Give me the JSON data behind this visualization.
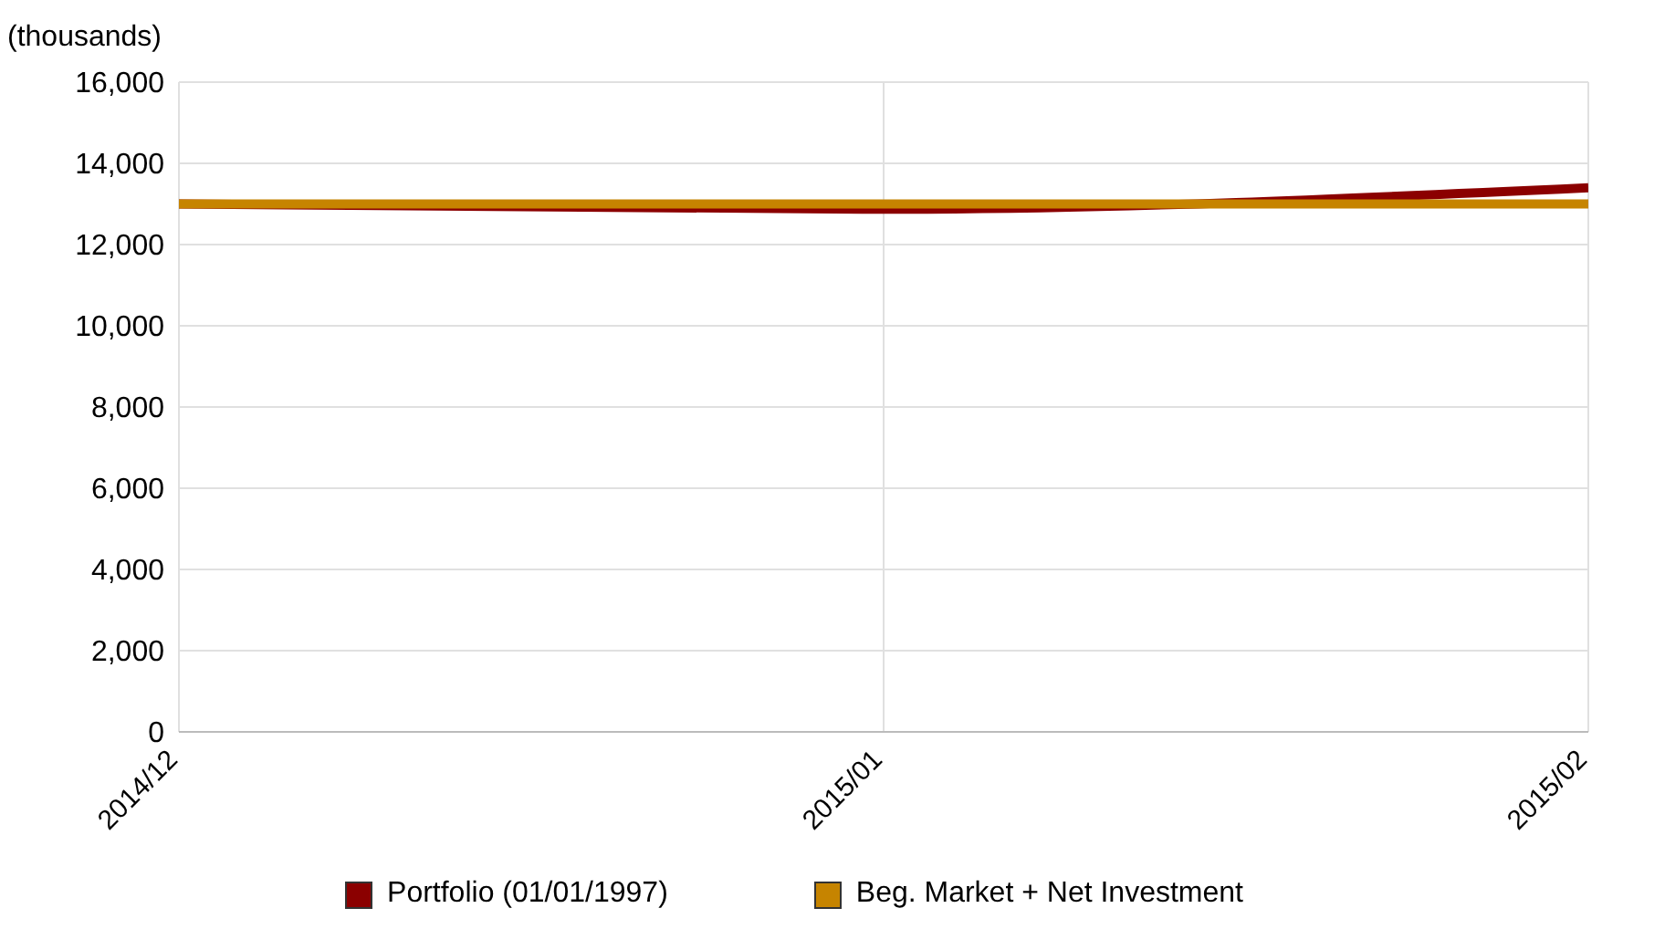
{
  "chart_data": {
    "type": "line",
    "ylabel": "(thousands)",
    "categories": [
      "2014/12",
      "2015/01",
      "2015/02"
    ],
    "series": [
      {
        "name": "Portfolio (01/01/1997)",
        "color": "#8b0000",
        "values": [
          13000,
          12870,
          13400
        ]
      },
      {
        "name": "Beg. Market + Net Investment",
        "color": "#c68400",
        "values": [
          13000,
          13000,
          13000
        ]
      }
    ],
    "ylim": [
      0,
      16000
    ],
    "yticks": [
      0,
      {
        "value": 2000,
        "label": "2,000"
      },
      {
        "value": 4000,
        "label": "4,000"
      },
      {
        "value": 6000,
        "label": "6,000"
      },
      {
        "value": 8000,
        "label": "8,000"
      },
      {
        "value": 10000,
        "label": "10,000"
      },
      {
        "value": 12000,
        "label": "12,000"
      },
      {
        "value": 14000,
        "label": "14,000"
      },
      {
        "value": 16000,
        "label": "16,000"
      }
    ],
    "grid": true,
    "legend": "bottom",
    "marker": "none",
    "line_style": "solid"
  }
}
